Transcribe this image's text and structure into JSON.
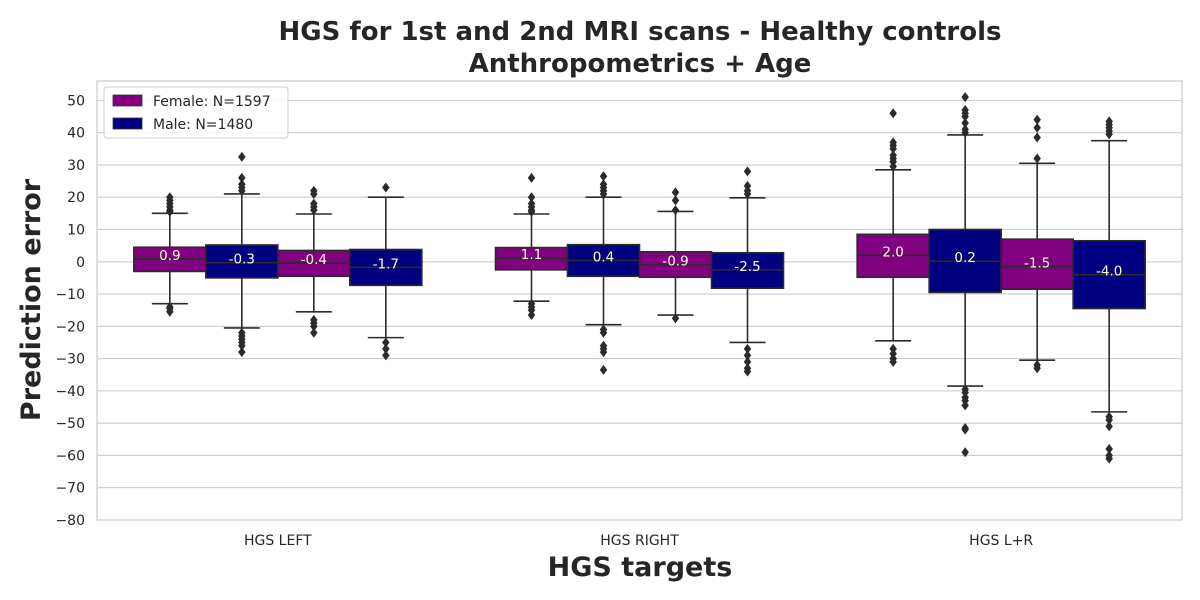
{
  "chart_data": {
    "type": "box",
    "title": [
      "HGS for 1st and 2nd MRI scans - Healthy controls",
      "Anthropometrics + Age"
    ],
    "xlabel": "HGS targets",
    "ylabel": "Prediction error",
    "categories": [
      "HGS LEFT",
      "HGS RIGHT",
      "HGS L+R"
    ],
    "ylim": [
      -80,
      56
    ],
    "yticks": [
      -80,
      -70,
      -60,
      -50,
      -40,
      -30,
      -20,
      -10,
      0,
      10,
      20,
      30,
      40,
      50
    ],
    "grid": true,
    "legend_position": "top-left",
    "legend": [
      {
        "label": "Female: N=1597",
        "color": "#800080"
      },
      {
        "label": "Male: N=1480",
        "color": "#000080"
      }
    ],
    "boxes": [
      {
        "category": "HGS LEFT",
        "group": "Female 1st",
        "color": "#800080",
        "q1": -3,
        "median": 0.9,
        "q3": 4.5,
        "whisker_low": -13,
        "whisker_high": 15,
        "label": "0.9",
        "outliers": [
          -15.5,
          -14.5,
          -14,
          15.5,
          16,
          17,
          18,
          19,
          20
        ]
      },
      {
        "category": "HGS LEFT",
        "group": "Male 1st",
        "color": "#000080",
        "q1": -5,
        "median": -0.3,
        "q3": 5.2,
        "whisker_low": -20.5,
        "whisker_high": 21,
        "label": "-0.3",
        "outliers": [
          -22,
          -23,
          -24,
          -25,
          -26,
          -28,
          22,
          23,
          24,
          26,
          32.5
        ]
      },
      {
        "category": "HGS LEFT",
        "group": "Female 2nd",
        "color": "#800080",
        "q1": -4.5,
        "median": -0.4,
        "q3": 3.5,
        "whisker_low": -15.5,
        "whisker_high": 14.8,
        "label": "-0.4",
        "outliers": [
          -18,
          -19,
          -20,
          -22,
          16,
          17,
          18,
          21,
          22
        ]
      },
      {
        "category": "HGS LEFT",
        "group": "Male 2nd",
        "color": "#000080",
        "q1": -7.3,
        "median": -1.7,
        "q3": 3.8,
        "whisker_low": -23.5,
        "whisker_high": 20,
        "label": "-1.7",
        "outliers": [
          -25,
          -27,
          -29,
          23
        ]
      },
      {
        "category": "HGS RIGHT",
        "group": "Female 1st",
        "color": "#800080",
        "q1": -2.5,
        "median": 1.1,
        "q3": 4.4,
        "whisker_low": -12.2,
        "whisker_high": 14.8,
        "label": "1.1",
        "outliers": [
          -13,
          -14,
          -15,
          -16.5,
          15.5,
          16,
          17,
          18,
          20,
          26
        ]
      },
      {
        "category": "HGS RIGHT",
        "group": "Male 1st",
        "color": "#000080",
        "q1": -4.5,
        "median": 0.4,
        "q3": 5.3,
        "whisker_low": -19.5,
        "whisker_high": 20,
        "label": "0.4",
        "outliers": [
          -21,
          -22,
          -26,
          -27,
          -28,
          -33.5,
          21,
          22,
          23,
          24,
          26.5
        ]
      },
      {
        "category": "HGS RIGHT",
        "group": "Female 2nd",
        "color": "#800080",
        "q1": -4.8,
        "median": -0.9,
        "q3": 3.1,
        "whisker_low": -16.5,
        "whisker_high": 15.6,
        "label": "-0.9",
        "outliers": [
          -17.5,
          16,
          19,
          21.5
        ]
      },
      {
        "category": "HGS RIGHT",
        "group": "Male 2nd",
        "color": "#000080",
        "q1": -8.2,
        "median": -2.5,
        "q3": 2.8,
        "whisker_low": -25,
        "whisker_high": 19.8,
        "label": "-2.5",
        "outliers": [
          -27,
          -29,
          -31,
          -33,
          -34,
          21,
          22,
          23.5,
          28
        ]
      },
      {
        "category": "HGS L+R",
        "group": "Female 1st",
        "color": "#800080",
        "q1": -4.8,
        "median": 2.0,
        "q3": 8.5,
        "whisker_low": -24.5,
        "whisker_high": 28.5,
        "label": "2.0",
        "outliers": [
          -27,
          -28.5,
          -30,
          -31,
          29.5,
          31,
          32,
          33,
          35,
          36,
          37,
          46
        ]
      },
      {
        "category": "HGS L+R",
        "group": "Male 1st",
        "color": "#000080",
        "q1": -9.5,
        "median": 0.2,
        "q3": 10,
        "whisker_low": -38.5,
        "whisker_high": 39.3,
        "label": "0.2",
        "outliers": [
          -39.5,
          -40.5,
          -42,
          -43,
          -44.5,
          -51.5,
          -52,
          -59,
          40,
          41,
          43,
          45,
          46,
          47,
          51
        ]
      },
      {
        "category": "HGS L+R",
        "group": "Female 2nd",
        "color": "#800080",
        "q1": -8.5,
        "median": -1.5,
        "q3": 7,
        "whisker_low": -30.5,
        "whisker_high": 30.5,
        "label": "-1.5",
        "outliers": [
          -32,
          -33,
          32,
          38.5,
          41.5,
          44
        ]
      },
      {
        "category": "HGS L+R",
        "group": "Male 2nd",
        "color": "#000080",
        "q1": -14.5,
        "median": -4.0,
        "q3": 6.5,
        "whisker_low": -46.5,
        "whisker_high": 37.5,
        "label": "-4.0",
        "outliers": [
          -48,
          -49,
          -51,
          -58,
          -60,
          -61,
          39.5,
          40.5,
          41.5,
          42.5,
          43.5
        ]
      }
    ]
  }
}
